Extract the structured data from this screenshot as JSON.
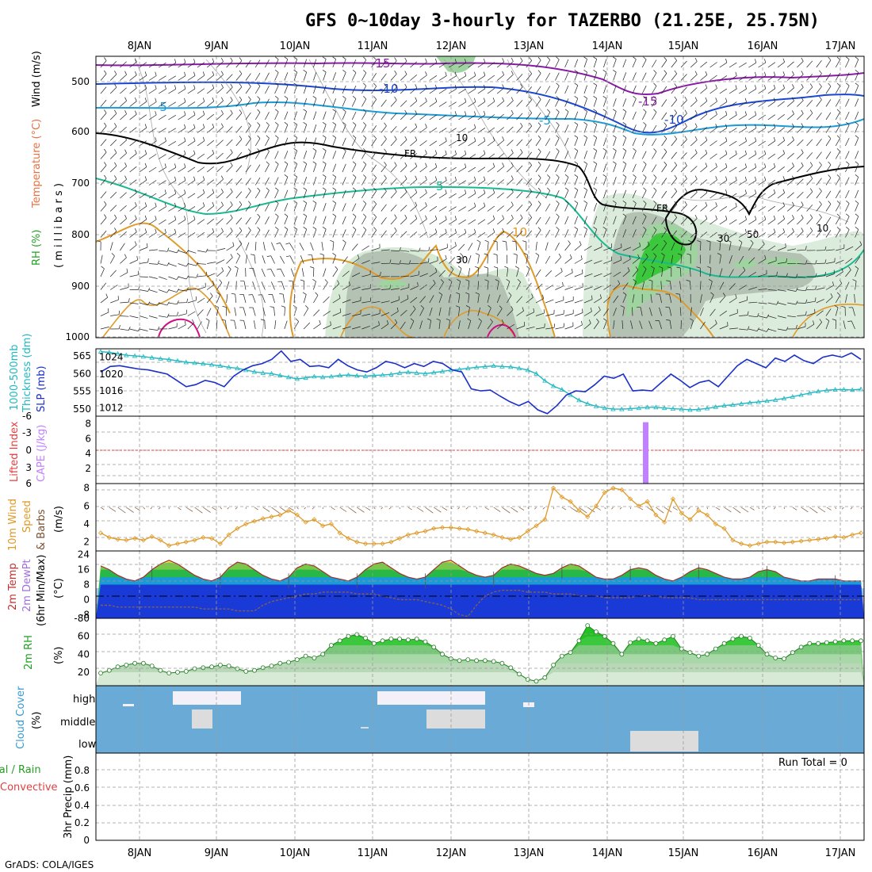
{
  "title": "GFS 0~10day 3-hourly for TAZERBO (21.25E, 25.75N)",
  "footer": "GrADS: COLA/IGES",
  "dates": [
    "8JAN",
    "9JAN",
    "10JAN",
    "11JAN",
    "12JAN",
    "13JAN",
    "14JAN",
    "15JAN",
    "16JAN",
    "17JAN"
  ],
  "colors": {
    "rh_green": "#3cc83c",
    "rh_mid": "#9fd39f",
    "rh_light": "#d6ead6",
    "rh_gray": "#b4c2b4",
    "temp_15": "#8c1aa8",
    "temp_10": "#1a46d0",
    "temp_5": "#1a9ad6",
    "temp_fr": "#000000",
    "temp_p5": "#18b890",
    "temp_p10": "#e09a28",
    "temp_warm": "#d01080",
    "slp": "#1a30c8",
    "thickness": "#20b8c0",
    "cape": "#c080ff",
    "li_zero": "#e04040",
    "wind_speed": "#e09a28",
    "wind_barb": "#7a5030",
    "cloud_bg": "#6aaad6",
    "cloud_fill": "#dcdcdc",
    "high_cloud": "#f4f0f8",
    "dewpt_band": "#a070e0",
    "dewpt_line": "#806050"
  },
  "panels": {
    "upper_air": {
      "labels": [
        "Wind (m/s)",
        "Temperature (°C)",
        "RH (%)",
        "( m i l l i b a r s )"
      ],
      "ytick_labels": [
        "500",
        "600",
        "700",
        "800",
        "900",
        "1000"
      ],
      "contour_labels": [
        "-15",
        "-10",
        "-5",
        "FR",
        "5",
        "10",
        "-15",
        "-10",
        "-5",
        "FR",
        "10",
        "30",
        "50",
        "10",
        "30"
      ]
    },
    "slp_thick": {
      "labels": [
        "1000-500mb",
        "Thickness (dm)",
        "SLP (mb)"
      ],
      "left_ticks": [
        "565",
        "560",
        "555",
        "550"
      ],
      "right_ticks": [
        "1024",
        "1020",
        "1016",
        "1012"
      ]
    },
    "cape_li": {
      "labels": [
        "Lifted Index",
        "CAPE (J/kg)"
      ],
      "left_ticks": [
        "-6",
        "-3",
        "0",
        "3",
        "6"
      ],
      "right_ticks": [
        "8",
        "6",
        "4",
        "2"
      ]
    },
    "wind10": {
      "labels": [
        "10m Wind",
        "Speed",
        "& Barbs",
        "(m/s)"
      ],
      "ticks": [
        "8",
        "6",
        "4",
        "2"
      ]
    },
    "temp2m": {
      "labels": [
        "2m Temp",
        "2m DewPt",
        "(6hr Min/Max)",
        "(°C)"
      ],
      "ticks": [
        "24",
        "16",
        "8",
        "0",
        "-8",
        "-80"
      ]
    },
    "rh2m": {
      "labels": [
        "2m RH",
        "(%)"
      ],
      "ticks": [
        "60",
        "40",
        "20"
      ]
    },
    "cloud": {
      "labels": [
        "Cloud Cover",
        "(%)"
      ],
      "levels": [
        "high",
        "middle",
        "low"
      ]
    },
    "precip": {
      "labels": [
        "Total / Rain",
        "Convective",
        "3hr Precip (mm)"
      ],
      "ticks": [
        "0.8",
        "0.6",
        "0.4",
        "0.2",
        "0"
      ],
      "run_total": "Run Total = 0"
    }
  },
  "chart_data": [
    {
      "type": "line",
      "name": "sea_level_pressure",
      "ylabel": "SLP (mb)",
      "ylim": [
        1010,
        1026
      ],
      "values": [
        1020.5,
        1021.8,
        1022.0,
        1021.6,
        1021.2,
        1021.0,
        1020.5,
        1020.0,
        1018.5,
        1017.0,
        1017.5,
        1018.5,
        1018.0,
        1017.0,
        1019.5,
        1021.0,
        1022.0,
        1022.5,
        1023.5,
        1025.5,
        1023.0,
        1023.5,
        1021.8,
        1022.0,
        1021.5,
        1023.5,
        1022.0,
        1021.0,
        1020.5,
        1021.5,
        1023.0,
        1022.5,
        1021.5,
        1022.5,
        1021.8,
        1023.0,
        1022.5,
        1021.0,
        1020.5,
        1016.5,
        1016.0,
        1016.2,
        1014.8,
        1013.5,
        1012.5,
        1013.5,
        1011.5,
        1010.6,
        1012.5,
        1015.0,
        1016.0,
        1015.8,
        1017.5,
        1019.5,
        1019.0,
        1020.0,
        1016.0,
        1016.2,
        1016.0,
        1018.0,
        1020.0,
        1018.5,
        1016.8,
        1018.0,
        1018.5,
        1017.0,
        1019.5,
        1022.0,
        1023.5,
        1022.5,
        1021.5,
        1023.8,
        1023.0,
        1024.5,
        1023.2,
        1022.5,
        1024.0,
        1024.5,
        1024.0,
        1025.0,
        1023.5
      ]
    },
    {
      "type": "line",
      "name": "thickness_1000_500",
      "ylabel": "1000-500mb Thickness (dm)",
      "ylim": [
        548,
        567
      ],
      "values": [
        566.2,
        566.0,
        565.6,
        565.2,
        565.0,
        564.8,
        564.5,
        564.2,
        564.0,
        563.6,
        563.2,
        563.0,
        562.8,
        562.5,
        562.2,
        561.8,
        561.5,
        561.0,
        560.5,
        560.2,
        560.0,
        559.5,
        559.0,
        558.5,
        558.8,
        559.2,
        559.0,
        559.2,
        559.5,
        559.6,
        559.4,
        559.3,
        559.5,
        559.6,
        559.8,
        560.2,
        560.4,
        560.2,
        560.0,
        560.3,
        560.6,
        561.0,
        561.2,
        561.5,
        561.8,
        562.0,
        562.2,
        562.0,
        561.9,
        561.5,
        561.0,
        560.0,
        558.0,
        556.5,
        555.5,
        554.0,
        552.5,
        551.5,
        550.8,
        550.3,
        550.0,
        550.0,
        550.1,
        550.3,
        550.5,
        550.5,
        550.3,
        550.1,
        550.0,
        549.8,
        549.9,
        550.2,
        550.6,
        551.0,
        551.2,
        551.5,
        551.8,
        552.0,
        552.3,
        552.6,
        553.0,
        553.5,
        554.0,
        554.5,
        555.0,
        555.3,
        555.5,
        555.5,
        555.4,
        555.6
      ]
    },
    {
      "type": "bar",
      "name": "cape",
      "ylabel": "CAPE (J/kg)",
      "ylim": [
        0,
        9
      ],
      "categories": [
        "14JAN 12Z"
      ],
      "values": [
        8.2
      ]
    },
    {
      "type": "line",
      "name": "wind_speed_10m",
      "ylabel": "10m Wind Speed (m/s)",
      "ylim": [
        1,
        8.5
      ],
      "values": [
        3.0,
        2.5,
        2.3,
        2.2,
        2.4,
        2.2,
        2.6,
        2.2,
        1.6,
        1.8,
        2.0,
        2.2,
        2.5,
        2.4,
        1.8,
        2.8,
        3.5,
        4.0,
        4.3,
        4.6,
        4.8,
        5.0,
        5.5,
        5.0,
        4.2,
        4.5,
        3.8,
        4.0,
        3.0,
        2.4,
        2.0,
        1.8,
        1.8,
        1.8,
        2.0,
        2.4,
        2.8,
        3.0,
        3.2,
        3.5,
        3.6,
        3.6,
        3.5,
        3.4,
        3.2,
        3.0,
        2.8,
        2.5,
        2.3,
        2.5,
        3.2,
        3.8,
        4.5,
        8.0,
        7.0,
        6.5,
        5.5,
        4.8,
        6.0,
        7.5,
        8.0,
        7.8,
        6.8,
        6.0,
        6.5,
        5.0,
        4.2,
        6.8,
        5.2,
        4.5,
        5.5,
        5.0,
        4.0,
        3.5,
        2.2,
        1.8,
        1.6,
        1.8,
        2.0,
        2.0,
        1.9,
        2.0,
        2.1,
        2.2,
        2.3,
        2.4,
        2.6,
        2.5,
        2.8,
        3.0
      ]
    },
    {
      "type": "area",
      "name": "temperature_2m",
      "ylabel": "2m Temp (°C)",
      "ylim": [
        -10,
        26
      ],
      "series": [
        {
          "name": "2m Temp",
          "values": [
            18,
            16,
            13,
            11,
            10,
            12,
            16,
            19,
            21,
            19,
            16,
            13,
            11,
            10,
            12,
            17,
            20,
            19,
            16,
            13,
            11,
            10,
            12,
            17,
            19,
            18,
            15,
            12,
            11,
            10,
            12,
            16,
            19,
            20,
            17,
            14,
            12,
            11,
            12,
            16,
            20,
            21,
            18,
            15,
            13,
            12,
            13,
            17,
            19,
            18,
            16,
            14,
            13,
            14,
            17,
            19,
            18,
            15,
            12,
            11,
            11,
            13,
            16,
            17,
            16,
            13,
            11,
            10,
            12,
            15,
            17,
            16,
            14,
            12,
            11,
            11,
            12,
            15,
            16,
            15,
            12,
            11,
            10,
            10,
            11,
            11,
            11,
            10,
            10,
            10
          ]
        },
        {
          "name": "2m DewPt",
          "values": [
            -3,
            -3,
            -4,
            -4,
            -4,
            -4,
            -4,
            -4,
            -4,
            -4,
            -4,
            -4,
            -5,
            -5,
            -5,
            -5,
            -6,
            -6,
            -6,
            -3,
            -1,
            0,
            1,
            2,
            3,
            3,
            4,
            4,
            4,
            4,
            3,
            3,
            3,
            2,
            1,
            0,
            0,
            0,
            -1,
            -2,
            -3,
            -5,
            -8,
            -9,
            -3,
            2,
            4,
            5,
            5,
            5,
            4,
            4,
            4,
            3,
            3,
            3,
            2,
            2,
            2,
            1,
            1,
            1,
            1,
            2,
            2,
            2,
            1,
            1,
            1,
            1,
            0,
            0,
            0,
            0,
            0,
            0,
            0,
            0,
            0,
            0,
            0,
            0,
            0,
            0,
            0,
            0,
            0,
            0,
            0,
            0
          ]
        }
      ]
    },
    {
      "type": "area",
      "name": "relative_humidity_2m",
      "ylabel": "2m RH (%)",
      "ylim": [
        5,
        80
      ],
      "values": [
        19,
        22,
        26,
        28,
        30,
        30,
        27,
        22,
        19,
        20,
        21,
        24,
        25,
        26,
        28,
        27,
        24,
        21,
        22,
        25,
        27,
        30,
        31,
        34,
        38,
        36,
        40,
        50,
        55,
        60,
        62,
        58,
        52,
        55,
        57,
        57,
        56,
        57,
        54,
        48,
        40,
        35,
        33,
        34,
        33,
        33,
        32,
        30,
        25,
        18,
        12,
        10,
        14,
        28,
        38,
        42,
        55,
        72,
        65,
        60,
        52,
        40,
        53,
        57,
        55,
        52,
        56,
        60,
        46,
        42,
        38,
        40,
        46,
        52,
        57,
        60,
        58,
        50,
        40,
        36,
        35,
        42,
        48,
        52,
        52,
        53,
        54,
        55,
        55,
        55
      ]
    },
    {
      "type": "table",
      "name": "cloud_cover",
      "columns": [
        "level",
        "cloudy_periods"
      ],
      "rows": [
        [
          "high",
          "8JAN 18Z-9JAN 12Z, 11JAN 03Z-12JAN 12Z"
        ],
        [
          "middle",
          "8JAN 21Z-9JAN 00Z, 11JAN 18Z-12JAN 12Z"
        ],
        [
          "low",
          "14JAN 06Z-15JAN 06Z"
        ]
      ]
    },
    {
      "type": "bar",
      "name": "precipitation_3hr",
      "ylabel": "3hr Precip (mm)",
      "ylim": [
        0,
        1
      ],
      "values": []
    }
  ]
}
